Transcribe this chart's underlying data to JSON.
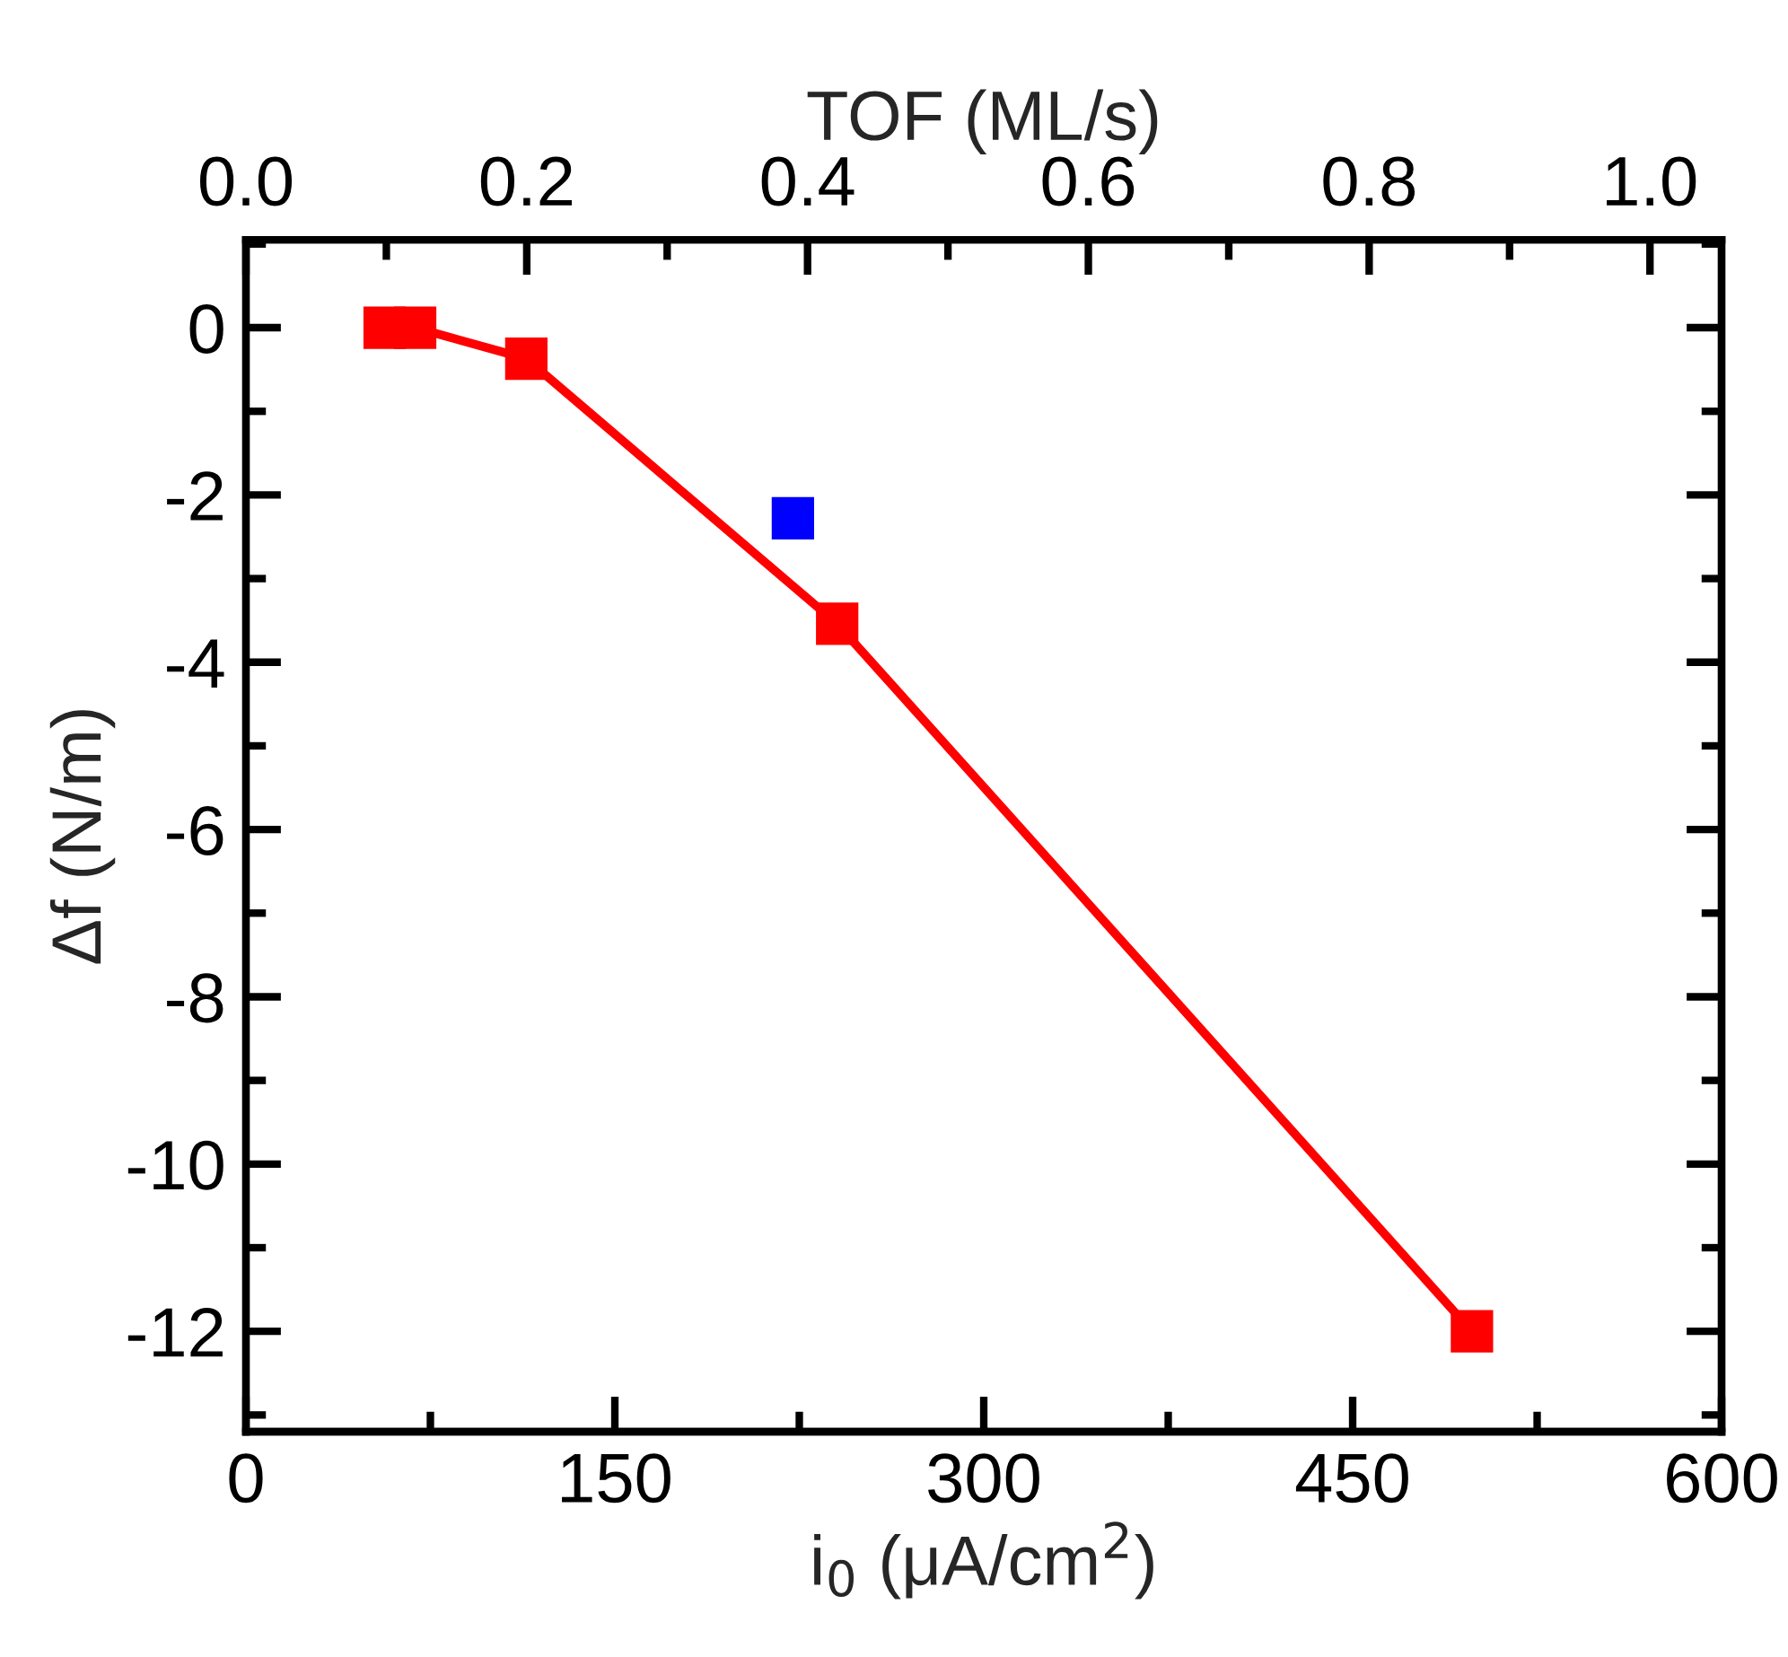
{
  "chart_data": {
    "type": "line",
    "xlabel": "i$_{0}$ (μA/cm$^{2}$)",
    "ylabel": "Δf (N/m)",
    "x2label": "TOF (ML/s)",
    "series": [
      {
        "color": "#ff0000",
        "marker": "square",
        "line_style": "solid",
        "x": [
          56.4,
          68.8,
          114,
          240.4,
          498.5
        ],
        "values": [
          0,
          0,
          -0.37,
          -3.54,
          -12.0
        ]
      },
      {
        "type": "scatter",
        "color": "#0000ff",
        "marker": "square",
        "x": [
          222.4
        ],
        "values": [
          -2.28
        ]
      }
    ],
    "xlim": [
      0,
      600
    ],
    "xticks": [
      0,
      150,
      300,
      450,
      600
    ],
    "ylim": [
      -13.2,
      1.05
    ],
    "yticks": [
      {
        "value": -12,
        "label": "-12"
      },
      {
        "value": -10,
        "label": "-10"
      },
      {
        "value": -8,
        "label": "-8"
      },
      {
        "value": -6,
        "label": "-6"
      },
      {
        "value": -4,
        "label": "-4"
      },
      {
        "value": -2,
        "label": "-2"
      },
      0
    ],
    "x2lim": [
      0,
      1.051
    ],
    "x2ticks": [
      {
        "value": 0,
        "label": "0.0"
      },
      0.2,
      0.4,
      0.6,
      0.8,
      {
        "value": 1,
        "label": "1.0"
      }
    ],
    "grid": false,
    "legend": false
  }
}
